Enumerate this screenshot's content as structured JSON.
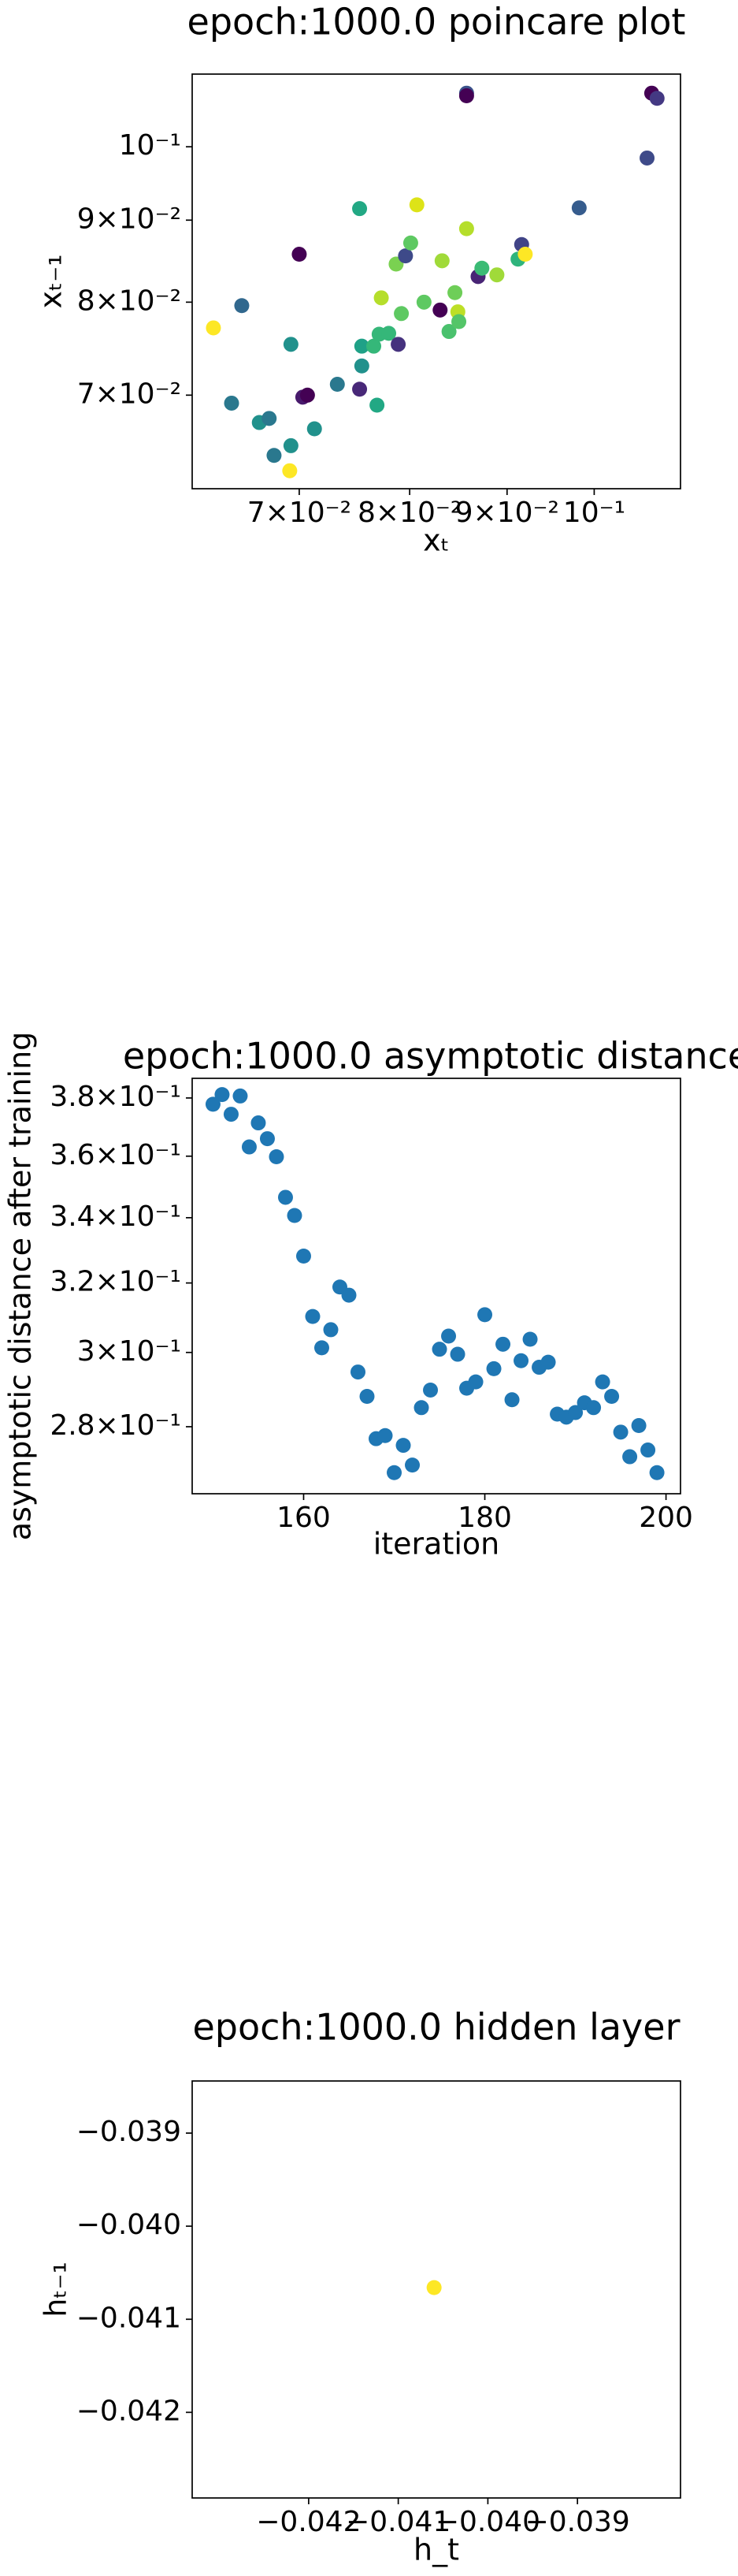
{
  "chart_data": [
    {
      "type": "scatter",
      "title": "epoch:1000.0 poincare plot",
      "xlabel": "xₜ",
      "ylabel": "xₜ₋₁",
      "xscale": "log",
      "yscale": "log",
      "xlim": [
        0.0615,
        0.111
      ],
      "ylim": [
        0.0612,
        0.111
      ],
      "xticks": [
        {
          "value": 0.07,
          "label": "7×10⁻²"
        },
        {
          "value": 0.08,
          "label": "8×10⁻²"
        },
        {
          "value": 0.09,
          "label": "9×10⁻²"
        },
        {
          "value": 0.1,
          "label": "10⁻¹"
        }
      ],
      "yticks": [
        {
          "value": 0.07,
          "label": "7×10⁻²"
        },
        {
          "value": 0.08,
          "label": "8×10⁻²"
        },
        {
          "value": 0.09,
          "label": "9×10⁻²"
        },
        {
          "value": 0.1,
          "label": "10⁻¹"
        }
      ],
      "x": [
        0.0631,
        0.0653,
        0.0645,
        0.0667,
        0.0675,
        0.0679,
        0.0693,
        0.0692,
        0.0693,
        0.07,
        0.0703,
        0.0707,
        0.0713,
        0.0733,
        0.0753,
        0.0753,
        0.0755,
        0.0755,
        0.0766,
        0.0769,
        0.0771,
        0.0773,
        0.078,
        0.0787,
        0.0789,
        0.0792,
        0.0796,
        0.0801,
        0.0807,
        0.0814,
        0.083,
        0.0832,
        0.0839,
        0.0845,
        0.0848,
        0.0849,
        0.0857,
        0.0857,
        0.0857,
        0.0869,
        0.0873,
        0.0889,
        0.0912,
        0.0916,
        0.092,
        0.0982,
        0.1066,
        0.1072,
        0.1079
      ],
      "y": [
        0.0771,
        0.0796,
        0.0692,
        0.0673,
        0.0677,
        0.0642,
        0.0651,
        0.0628,
        0.0753,
        0.0857,
        0.0698,
        0.07,
        0.0667,
        0.0711,
        0.0706,
        0.0915,
        0.073,
        0.0751,
        0.0751,
        0.069,
        0.0764,
        0.0805,
        0.0765,
        0.0845,
        0.0753,
        0.0787,
        0.0855,
        0.0871,
        0.092,
        0.08,
        0.0791,
        0.0849,
        0.0767,
        0.0811,
        0.0789,
        0.0778,
        0.108,
        0.1076,
        0.0889,
        0.083,
        0.084,
        0.0832,
        0.0851,
        0.0869,
        0.0857,
        0.0916,
        0.0984,
        0.108,
        0.1072
      ],
      "colors": [
        "#fde725",
        "#31688e",
        "#2a788e",
        "#21918c",
        "#2a788e",
        "#2a788e",
        "#21918c",
        "#fde725",
        "#21918c",
        "#440154",
        "#481a6c",
        "#440154",
        "#21918c",
        "#2a788e",
        "#482878",
        "#22a884",
        "#21918c",
        "#1fa187",
        "#35b779",
        "#22a884",
        "#35b779",
        "#b5de2b",
        "#35b779",
        "#7ad151",
        "#46327e",
        "#5ec962",
        "#3e4a89",
        "#5ec962",
        "#dde318",
        "#5ec962",
        "#440154",
        "#a0da39",
        "#4ac16d",
        "#6ece58",
        "#bddf26",
        "#54c568",
        "#3b528b",
        "#440154",
        "#b5de2b",
        "#482475",
        "#3bbb75",
        "#a0da39",
        "#2fb47c",
        "#414487",
        "#fde725",
        "#365c8d",
        "#3e4a89",
        "#440154",
        "#443983"
      ]
    },
    {
      "type": "scatter",
      "title": "epoch:1000.0 asymptotic distance",
      "xlabel": "iteration",
      "ylabel": "asymptotic distance after training",
      "yscale": "log",
      "color": "#1f77b4",
      "xlim": [
        147.7,
        201.6
      ],
      "ylim": [
        0.2631,
        0.387
      ],
      "xticks": [
        160,
        180,
        200
      ],
      "yticks": [
        {
          "value": 0.28,
          "label": "2.8×10⁻¹"
        },
        {
          "value": 0.3,
          "label": "3×10⁻¹"
        },
        {
          "value": 0.32,
          "label": "3.2×10⁻¹"
        },
        {
          "value": 0.34,
          "label": "3.4×10⁻¹"
        },
        {
          "value": 0.36,
          "label": "3.6×10⁻¹"
        },
        {
          "value": 0.38,
          "label": "3.8×10⁻¹"
        }
      ],
      "x": [
        150,
        151,
        152,
        153,
        154,
        155,
        156,
        157,
        158,
        159,
        160,
        161,
        162,
        163,
        164,
        165,
        166,
        167,
        168,
        169,
        170,
        171,
        172,
        173,
        174,
        175,
        176,
        177,
        178,
        179,
        180,
        181,
        182,
        183,
        184,
        185,
        186,
        187,
        188,
        189,
        190,
        191,
        192,
        193,
        194,
        195,
        196,
        197,
        198,
        199
      ],
      "y": [
        0.3778,
        0.3812,
        0.3743,
        0.3807,
        0.3631,
        0.3713,
        0.3659,
        0.3598,
        0.3465,
        0.3407,
        0.3281,
        0.3102,
        0.3013,
        0.3064,
        0.3188,
        0.3164,
        0.2946,
        0.288,
        0.2769,
        0.2777,
        0.2683,
        0.2752,
        0.2702,
        0.285,
        0.2897,
        0.3009,
        0.3046,
        0.2995,
        0.2902,
        0.2919,
        0.3107,
        0.2955,
        0.3023,
        0.2871,
        0.2977,
        0.3037,
        0.2959,
        0.2973,
        0.2833,
        0.2825,
        0.2837,
        0.2863,
        0.285,
        0.2919,
        0.288,
        0.2786,
        0.2723,
        0.2803,
        0.274,
        0.2683
      ]
    },
    {
      "type": "scatter",
      "title": "epoch:1000.0 hidden layer",
      "xlabel": "h_t",
      "ylabel": "hₜ₋₁",
      "color": "#fde725",
      "xlim": [
        -0.0433,
        -0.03785
      ],
      "ylim": [
        -0.04292,
        -0.03844
      ],
      "xticks": [
        {
          "value": -0.042,
          "label": "−0.042"
        },
        {
          "value": -0.041,
          "label": "−0.041"
        },
        {
          "value": -0.04,
          "label": "−0.040"
        },
        {
          "value": -0.039,
          "label": "−0.039"
        }
      ],
      "yticks": [
        {
          "value": -0.042,
          "label": "−0.042"
        },
        {
          "value": -0.041,
          "label": "−0.041"
        },
        {
          "value": -0.04,
          "label": "−0.040"
        },
        {
          "value": -0.039,
          "label": "−0.039"
        }
      ],
      "x": [
        -0.0406
      ],
      "y": [
        -0.04066
      ]
    }
  ]
}
